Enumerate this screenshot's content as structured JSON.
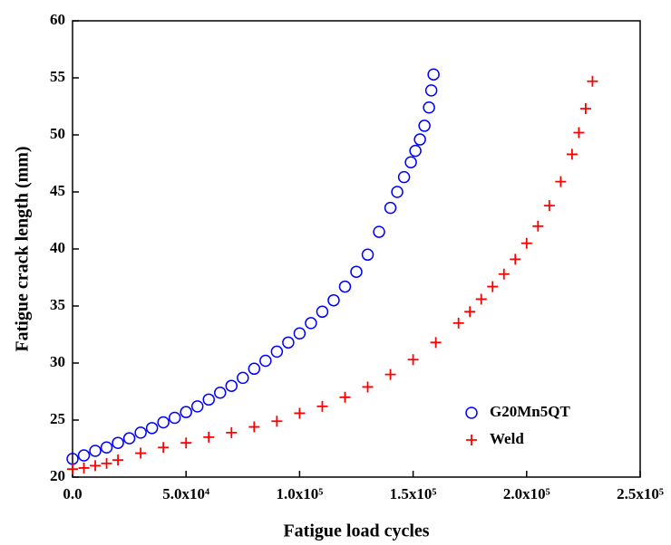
{
  "chart_data": {
    "type": "scatter",
    "x_label": "Fatigue load cycles",
    "y_label": "Fatigue crack length (mm)",
    "xlim": [
      0,
      250000
    ],
    "ylim": [
      20,
      60
    ],
    "xticks": [
      {
        "value": 0,
        "label": "0.0"
      },
      {
        "value": 50000,
        "label": "5.0x10⁴"
      },
      {
        "value": 100000,
        "label": "1.0x10⁵"
      },
      {
        "value": 150000,
        "label": "1.5x10⁵"
      },
      {
        "value": 200000,
        "label": "2.0x10⁵"
      },
      {
        "value": 250000,
        "label": "2.5x10⁵"
      }
    ],
    "yticks": [
      20,
      25,
      30,
      35,
      40,
      45,
      50,
      55,
      60
    ],
    "legend": "lower right",
    "series": [
      {
        "name": "G20Mn5QT",
        "color": "#0000ff",
        "marker": "circle",
        "x": [
          0,
          5000,
          10000,
          15000,
          20000,
          25000,
          30000,
          35000,
          40000,
          45000,
          50000,
          55000,
          60000,
          65000,
          70000,
          75000,
          80000,
          85000,
          90000,
          95000,
          100000,
          105000,
          110000,
          115000,
          120000,
          125000,
          130000,
          135000,
          140000,
          143000,
          146000,
          149000,
          151000,
          153000,
          155000,
          157000,
          158000,
          159000
        ],
        "values": [
          21.6,
          21.9,
          22.3,
          22.6,
          23.0,
          23.4,
          23.9,
          24.3,
          24.8,
          25.2,
          25.7,
          26.2,
          26.8,
          27.4,
          28.0,
          28.7,
          29.5,
          30.2,
          31.0,
          31.8,
          32.6,
          33.5,
          34.5,
          35.5,
          36.7,
          38.0,
          39.5,
          41.5,
          43.6,
          45.0,
          46.3,
          47.6,
          48.6,
          49.6,
          50.8,
          52.4,
          53.9,
          55.3
        ]
      },
      {
        "name": "Weld",
        "color": "#ff0000",
        "marker": "plus",
        "x": [
          0,
          5000,
          10000,
          15000,
          20000,
          30000,
          40000,
          50000,
          60000,
          70000,
          80000,
          90000,
          100000,
          110000,
          120000,
          130000,
          140000,
          150000,
          160000,
          170000,
          175000,
          180000,
          185000,
          190000,
          195000,
          200000,
          205000,
          210000,
          215000,
          220000,
          223000,
          226000,
          229000
        ],
        "values": [
          20.7,
          20.8,
          21.0,
          21.2,
          21.5,
          22.1,
          22.6,
          23.0,
          23.5,
          23.9,
          24.4,
          24.9,
          25.6,
          26.2,
          27.0,
          27.9,
          29.0,
          30.3,
          31.8,
          33.5,
          34.5,
          35.6,
          36.7,
          37.8,
          39.1,
          40.5,
          42.0,
          43.8,
          45.9,
          48.3,
          50.2,
          52.3,
          54.7
        ]
      }
    ]
  }
}
